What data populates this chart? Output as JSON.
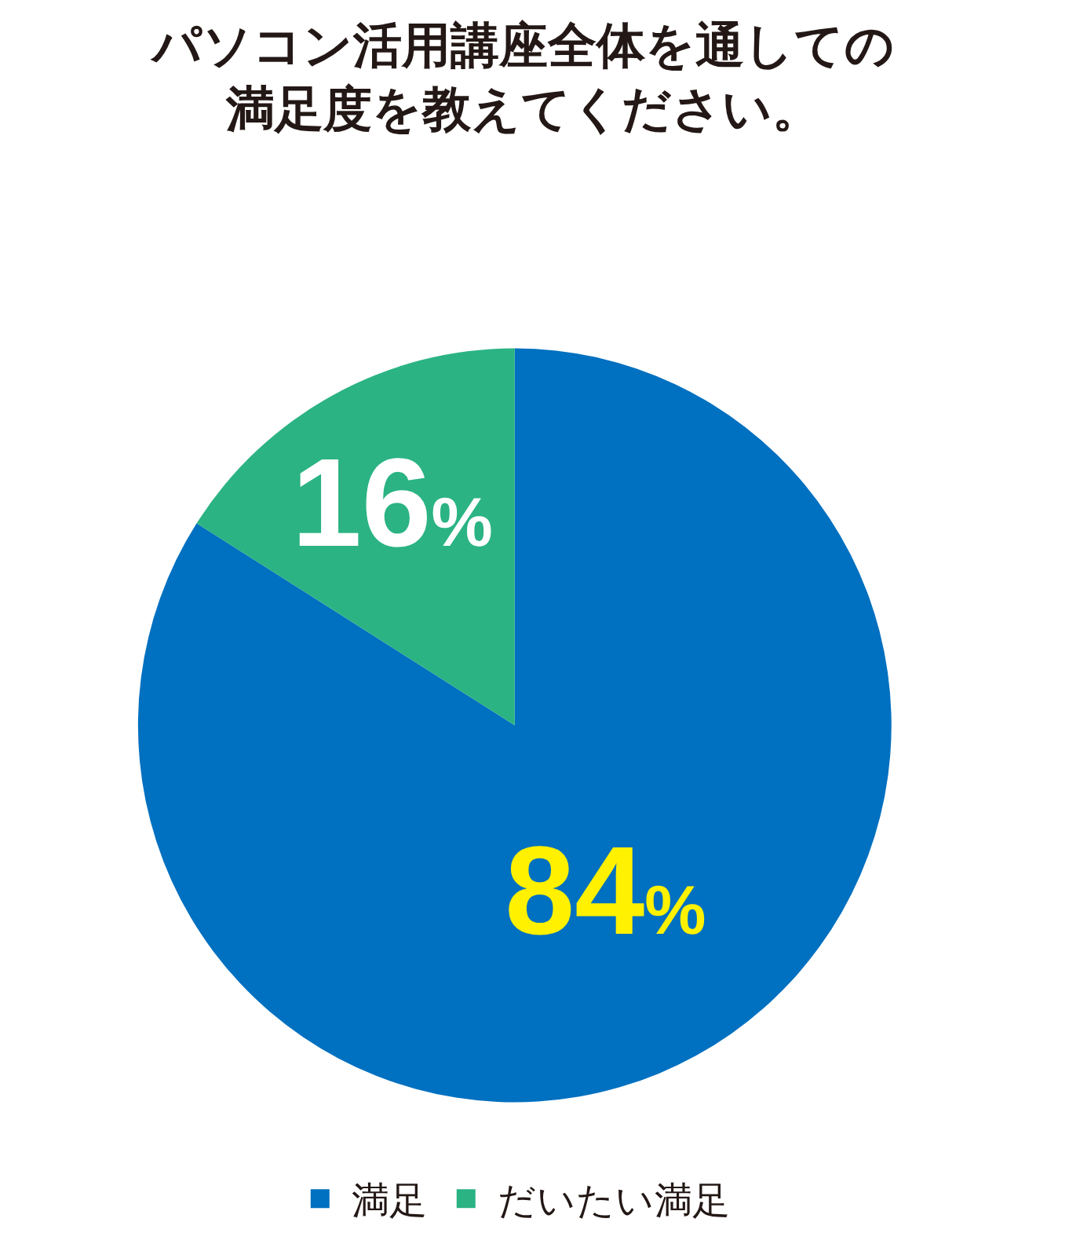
{
  "chart_data": {
    "type": "pie",
    "title": "パソコン活用講座全体を通しての満足度を教えてください。",
    "categories": [
      "満足",
      "だいたい満足"
    ],
    "values": [
      84,
      16
    ],
    "colors": [
      "#0070c0",
      "#2bb383"
    ],
    "value_labels": [
      "84%",
      "16%"
    ],
    "legend": "bottom"
  }
}
